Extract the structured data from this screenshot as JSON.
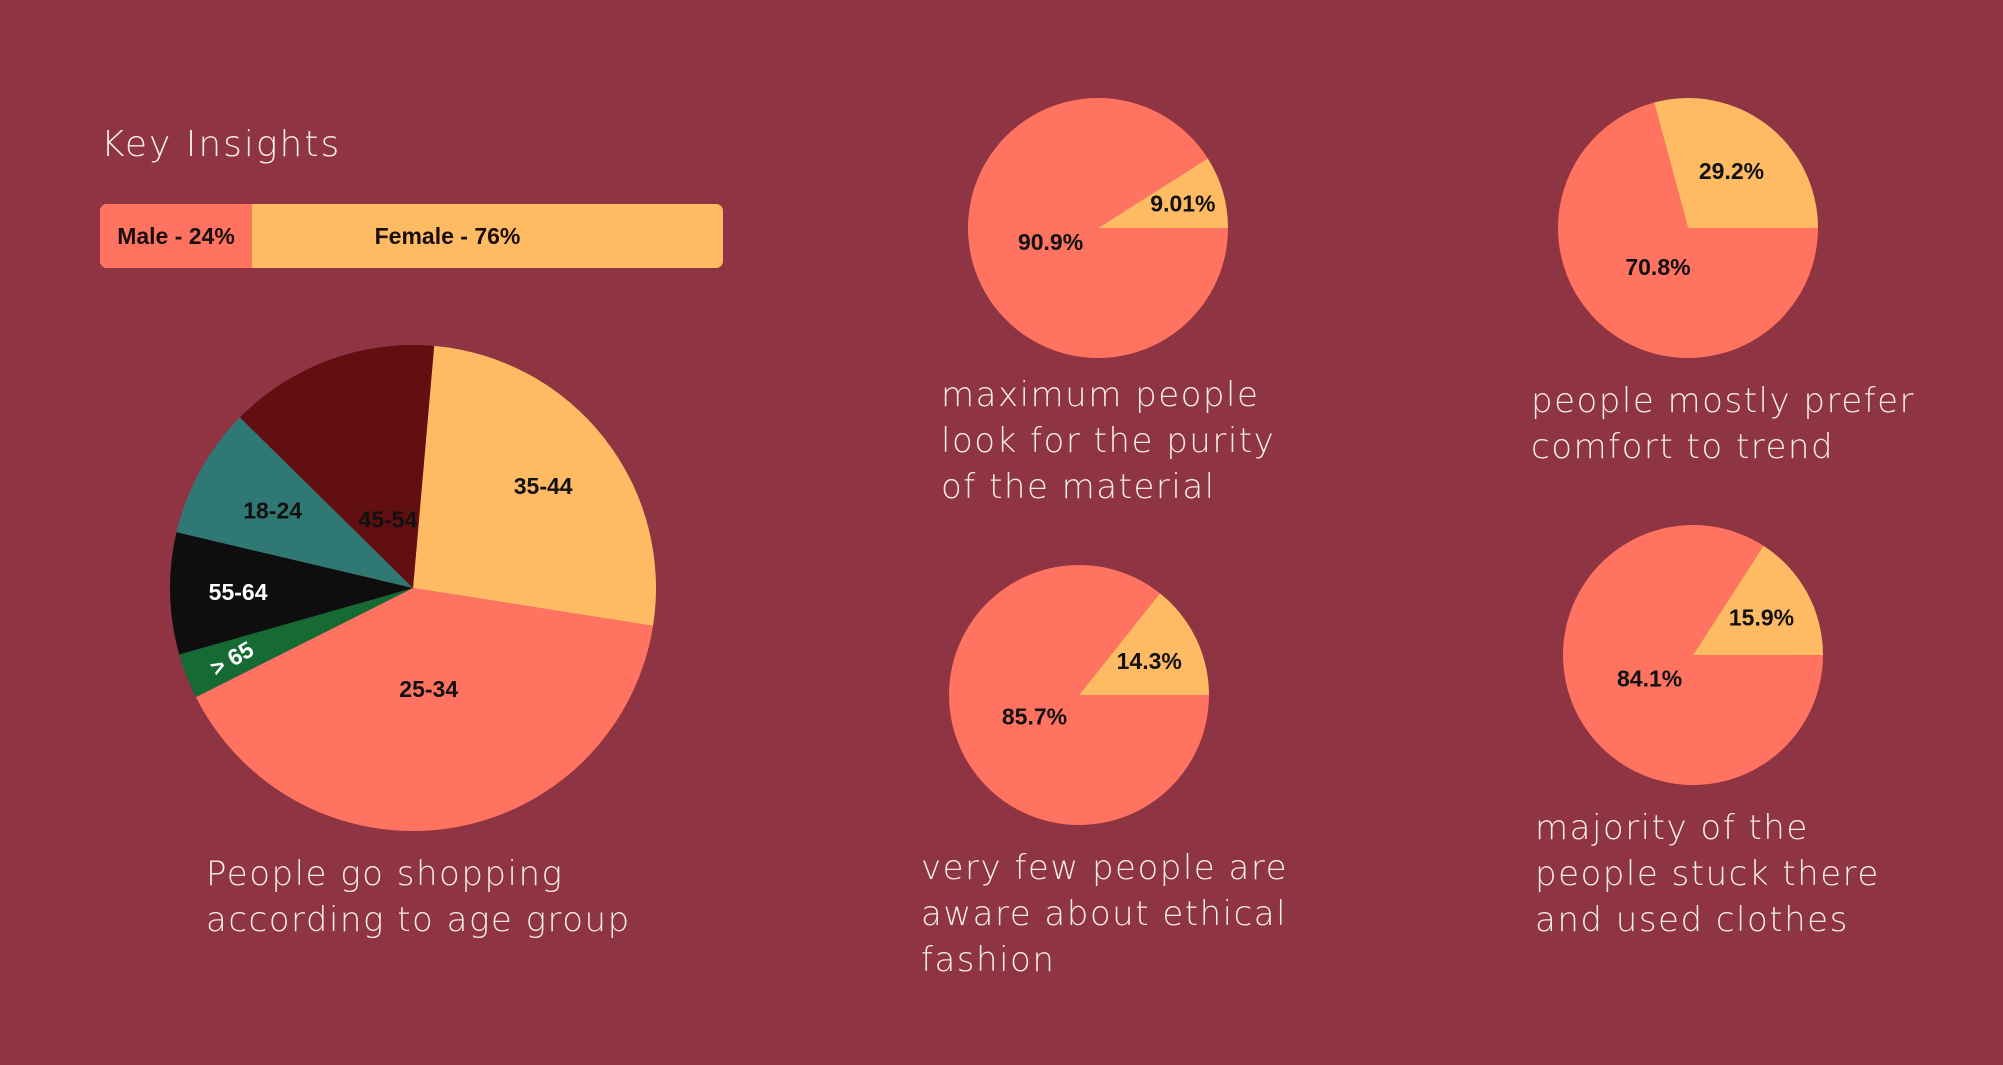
{
  "heading": "Key Insights",
  "gender_bar": {
    "male_label": "Male - 24%",
    "female_label": "Female - 76%"
  },
  "captions": {
    "age": [
      "People go shopping",
      "according to age group"
    ],
    "purity": [
      "maximum people",
      "look for the purity",
      "of the material"
    ],
    "comfort": [
      "people mostly prefer",
      "comfort to trend"
    ],
    "ethical": [
      "very few people are",
      "aware about ethical",
      "fashion"
    ],
    "used": [
      "majority of the",
      "people stuck there",
      "and used clothes"
    ]
  },
  "colors": {
    "background": "#8E3443",
    "coral": "#FF7360",
    "peach": "#FFBA64",
    "dark_red": "#620F12",
    "teal": "#307873",
    "black": "#0E0E0E",
    "green": "#166B34"
  },
  "chart_data": [
    {
      "id": "age",
      "type": "pie",
      "slices": [
        {
          "label": "35-44",
          "value": 26.1,
          "color": "#FFBA64",
          "text_color": "#111111"
        },
        {
          "label": "25-34",
          "value": 40.1,
          "color": "#FF7360",
          "text_color": "#111111"
        },
        {
          "label": "> 65",
          "value": 3.0,
          "color": "#166B34",
          "text_color": "#FFFFFF"
        },
        {
          "label": "55-64",
          "value": 8.1,
          "color": "#0E0E0E",
          "text_color": "#FFFFFF"
        },
        {
          "label": "18-24",
          "value": 8.7,
          "color": "#307873",
          "text_color": "#111111"
        },
        {
          "label": "45-54",
          "value": 14.0,
          "color": "#620F12",
          "text_color": "#111111"
        }
      ]
    },
    {
      "id": "purity",
      "type": "pie",
      "slices": [
        {
          "label": "9.01%",
          "value": 9.01,
          "color": "#FFBA64"
        },
        {
          "label": "90.9%",
          "value": 90.9,
          "color": "#FF7360"
        }
      ]
    },
    {
      "id": "comfort",
      "type": "pie",
      "slices": [
        {
          "label": "29.2%",
          "value": 29.2,
          "color": "#FFBA64"
        },
        {
          "label": "70.8%",
          "value": 70.8,
          "color": "#FF7360"
        }
      ]
    },
    {
      "id": "ethical",
      "type": "pie",
      "slices": [
        {
          "label": "14.3%",
          "value": 14.3,
          "color": "#FFBA64"
        },
        {
          "label": "85.7%",
          "value": 85.7,
          "color": "#FF7360"
        }
      ]
    },
    {
      "id": "used",
      "type": "pie",
      "slices": [
        {
          "label": "15.9%",
          "value": 15.9,
          "color": "#FFBA64"
        },
        {
          "label": "84.1%",
          "value": 84.1,
          "color": "#FF7360"
        }
      ]
    }
  ]
}
